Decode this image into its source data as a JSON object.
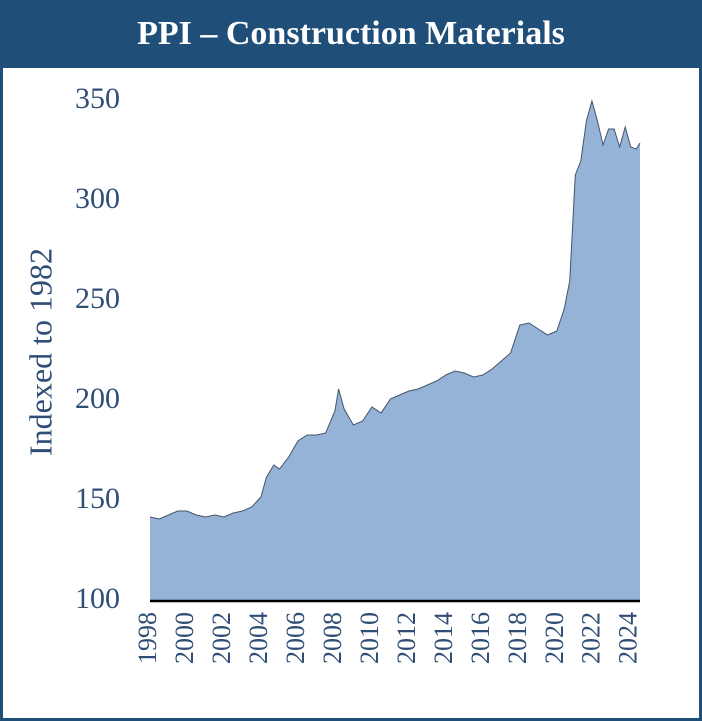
{
  "chart_data": {
    "type": "area",
    "title": "PPI – Construction Materials",
    "ylabel": "Indexed to 1982",
    "color": "#95b3d7",
    "line_color": "#44546a",
    "x": [
      1998,
      1998.5,
      1999,
      1999.5,
      2000,
      2000.5,
      2001,
      2001.5,
      2002,
      2002.5,
      2003,
      2003.5,
      2004,
      2004.3,
      2004.7,
      2005,
      2005.5,
      2006,
      2006.5,
      2007,
      2007.5,
      2008,
      2008.2,
      2008.5,
      2009,
      2009.5,
      2010,
      2010.5,
      2011,
      2011.5,
      2012,
      2012.5,
      2013,
      2013.5,
      2014,
      2014.5,
      2015,
      2015.5,
      2016,
      2016.5,
      2017,
      2017.5,
      2018,
      2018.5,
      2019,
      2019.5,
      2020,
      2020.4,
      2020.7,
      2021,
      2021.3,
      2021.6,
      2021.9,
      2022.2,
      2022.5,
      2022.8,
      2023.1,
      2023.4,
      2023.7,
      2024,
      2024.3,
      2024.5
    ],
    "values": [
      142,
      141,
      143,
      145,
      145,
      143,
      142,
      143,
      142,
      144,
      145,
      147,
      152,
      162,
      168,
      166,
      172,
      180,
      183,
      183,
      184,
      195,
      206,
      196,
      188,
      190,
      197,
      194,
      201,
      203,
      205,
      206,
      208,
      210,
      213,
      215,
      214,
      212,
      213,
      216,
      220,
      224,
      238,
      239,
      236,
      233,
      235,
      246,
      260,
      313,
      320,
      340,
      350,
      340,
      328,
      336,
      336,
      327,
      337,
      327,
      326,
      329
    ],
    "xlim": [
      1998,
      2024.5
    ],
    "ylim": [
      100,
      350
    ],
    "xticks": [
      1998,
      2000,
      2002,
      2004,
      2006,
      2008,
      2010,
      2012,
      2014,
      2016,
      2018,
      2020,
      2022,
      2024
    ],
    "yticks": [
      100,
      150,
      200,
      250,
      300,
      350
    ]
  }
}
